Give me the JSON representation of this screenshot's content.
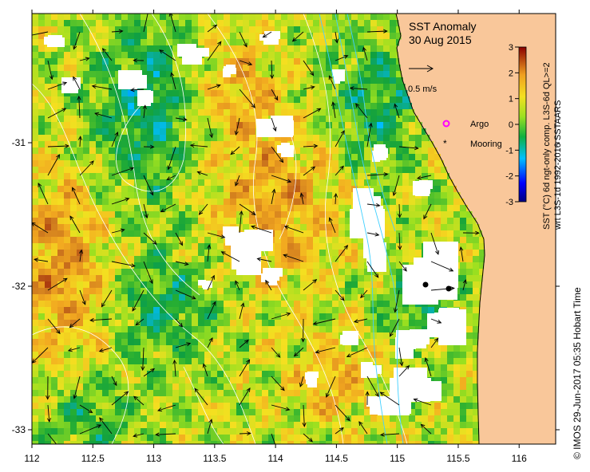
{
  "title": {
    "line1": "SST Anomaly",
    "line2": "30 Aug 2015"
  },
  "scale_arrow": {
    "label": "0.5 m/s"
  },
  "legend": {
    "argo": "Argo",
    "mooring": "Mooring"
  },
  "colorbar": {
    "label_line1": "SST (°C) 6d ngt-only comp. L3S-6d QL>=2",
    "label_line2": "wrt L3S-1d 1992-2016 SSTAARS",
    "ticks": [
      "3",
      "2",
      "1",
      "0",
      "-1",
      "-2",
      "-3"
    ],
    "min": -3,
    "max": 3
  },
  "axes": {
    "x_ticks": [
      "112",
      "112.5",
      "113",
      "113.5",
      "114",
      "114.5",
      "115",
      "115.5",
      "116"
    ],
    "y_ticks": [
      "-31",
      "-32",
      "-33"
    ],
    "x_range": [
      112,
      116.3
    ],
    "y_range": [
      -33.1,
      -30.1
    ]
  },
  "credit": "©  IMOS 29-Jun-2017 05:35 Hobart Time",
  "colors": {
    "land": "#f9c79a",
    "missing": "#ffffff",
    "ocean_high": "#b05a10",
    "ocean_mid": "#f2d020",
    "ocean_low": "#1fa030",
    "contour": "#ffffff",
    "bathymetry": "#40d0ff",
    "argo_marker": "#ff00ff",
    "mooring_marker": "#000000"
  },
  "chart_data": {
    "type": "heatmap",
    "variable": "SST anomaly",
    "units": "°C",
    "date": "30 Aug 2015",
    "lon_range": [
      112,
      116.3
    ],
    "lat_range": [
      -33.1,
      -30.1
    ],
    "colorbar_range": [
      -3,
      3
    ],
    "moorings": [
      {
        "lon": 115.25,
        "lat": -31.98
      },
      {
        "lon": 115.42,
        "lat": -32.0
      }
    ]
  }
}
